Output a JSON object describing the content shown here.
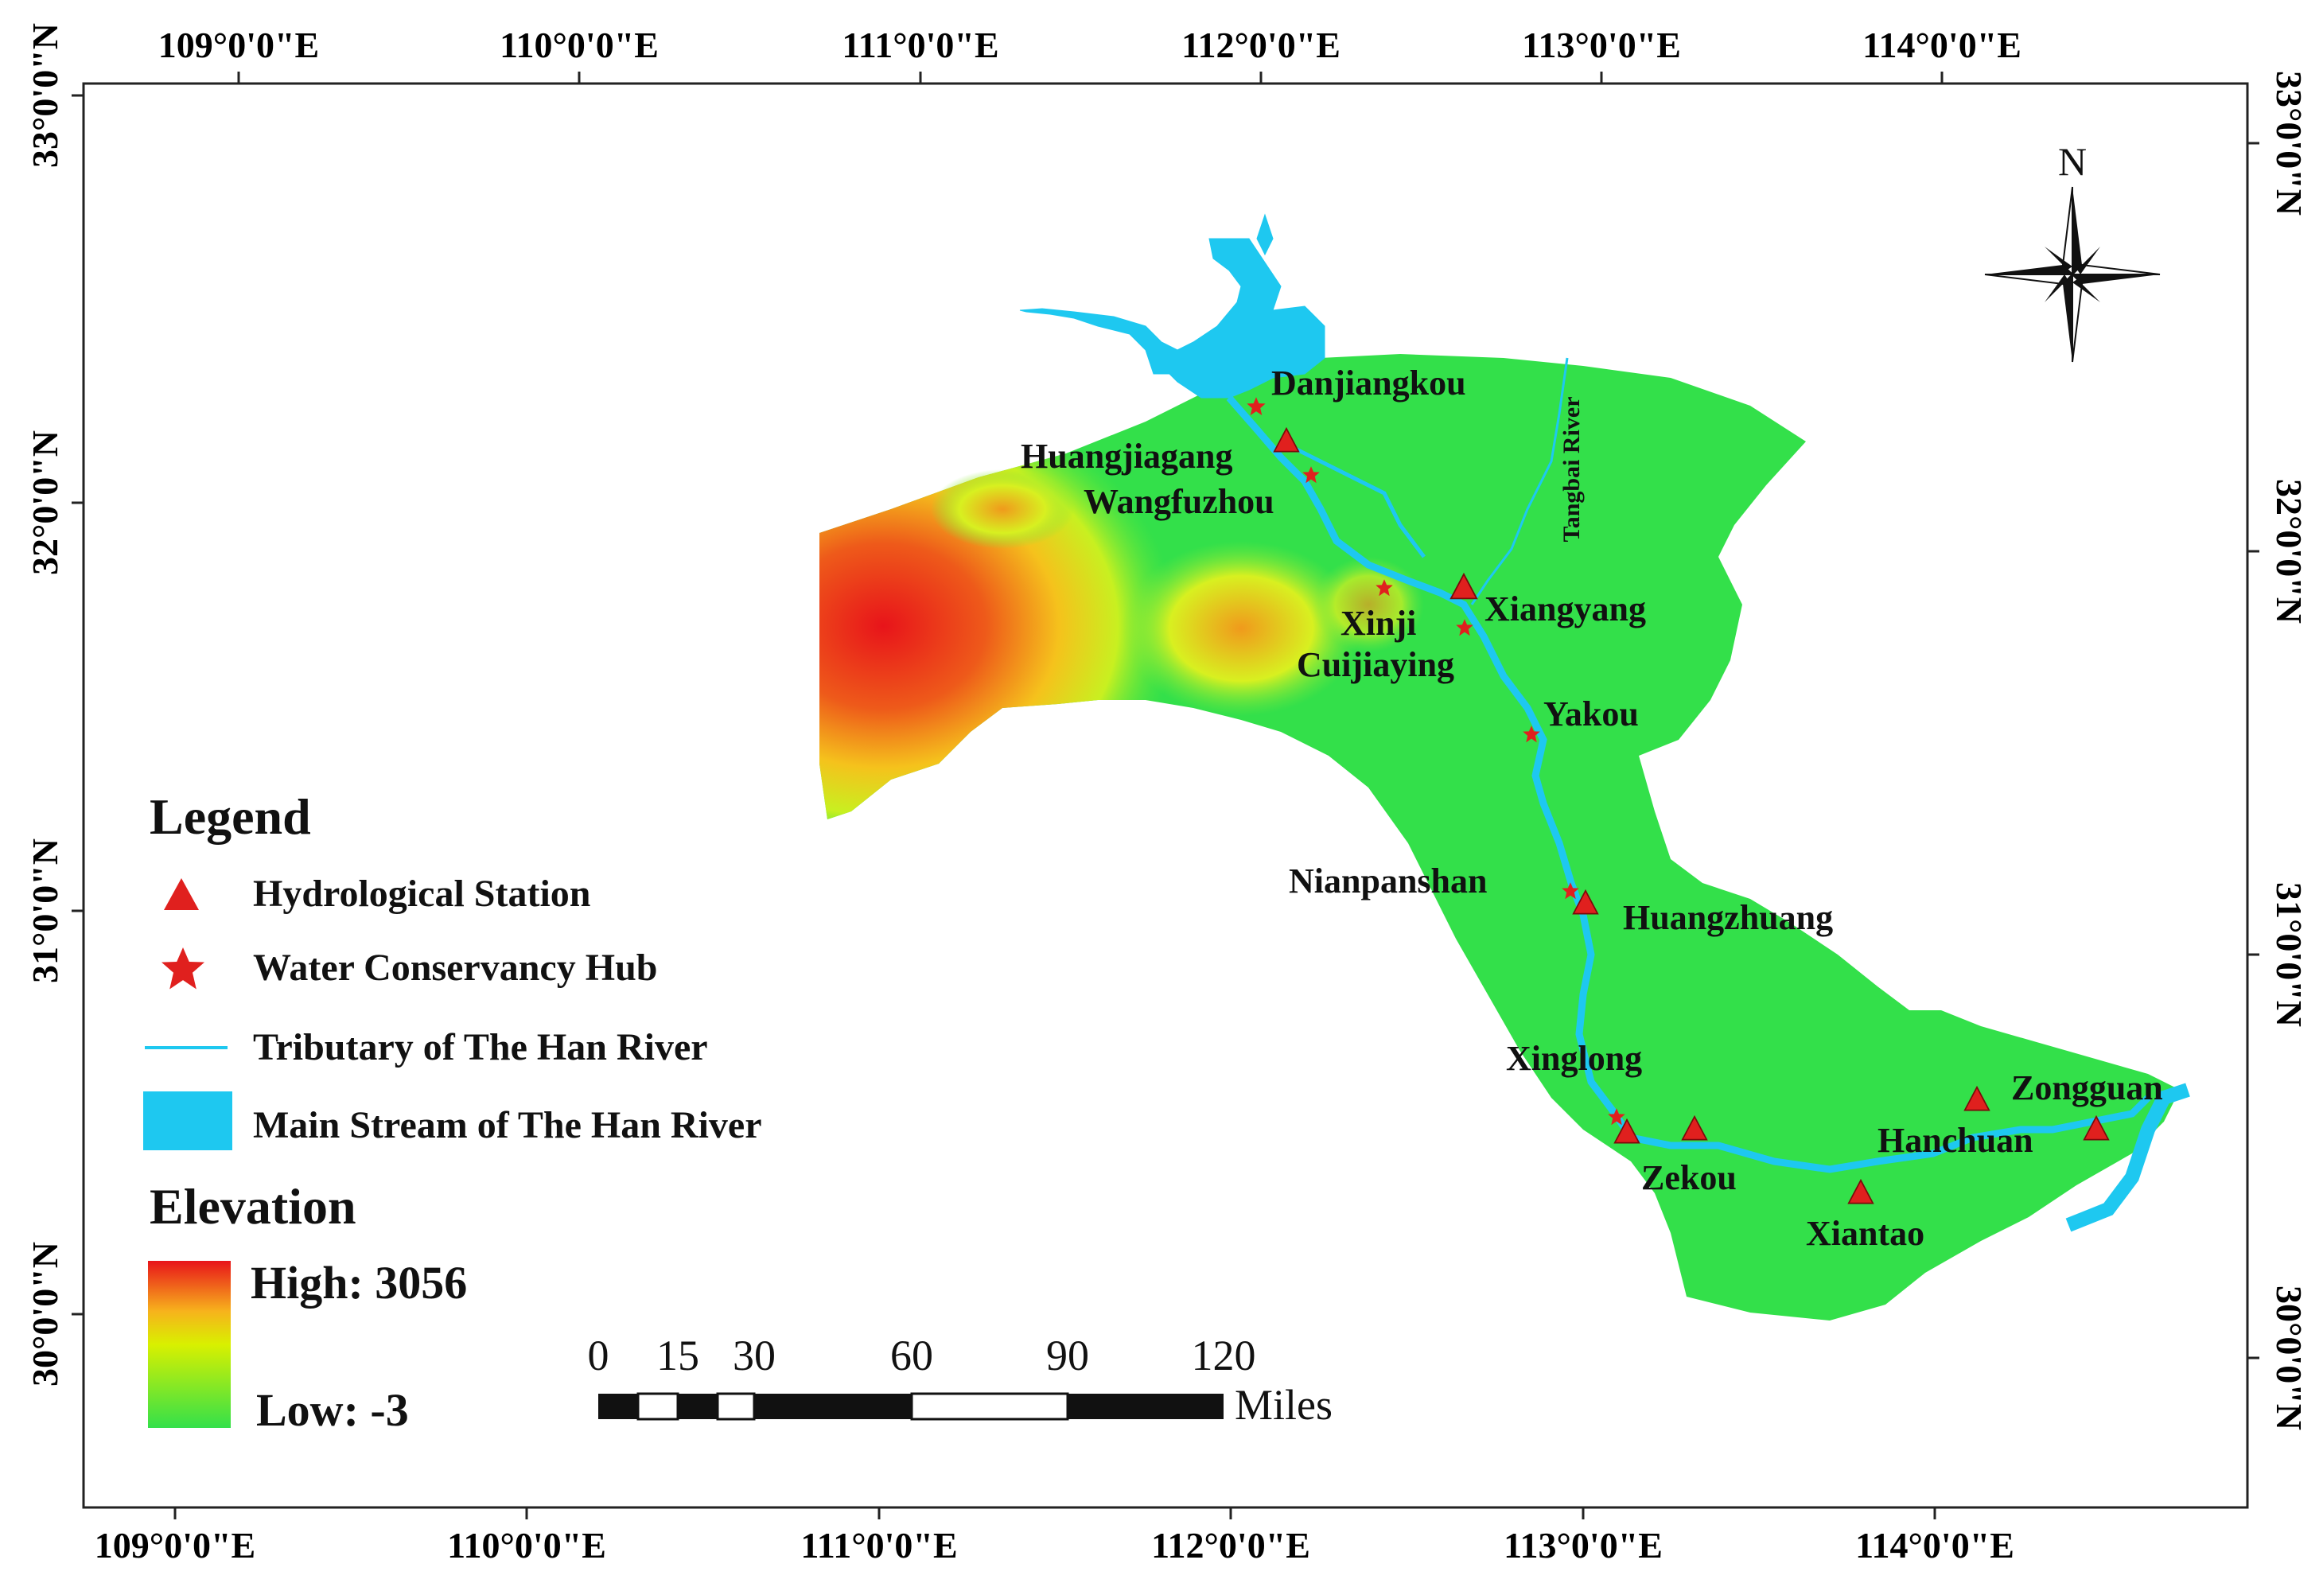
{
  "map": {
    "top_lon_labels": [
      "109°0'0\"E",
      "110°0'0\"E",
      "111°0'0\"E",
      "112°0'0\"E",
      "113°0'0\"E",
      "114°0'0\"E"
    ],
    "bottom_lon_labels": [
      "109°0'0\"E",
      "110°0'0\"E",
      "111°0'0\"E",
      "112°0'0\"E",
      "113°0'0\"E",
      "114°0'0\"E"
    ],
    "left_lat_labels": [
      "33°0'0\"N",
      "32°0'0\"N",
      "31°0'0\"N",
      "30°0'0\"N"
    ],
    "right_lat_labels": [
      "33°0'0\"N",
      "32°0'0\"N",
      "31°0'0\"N",
      "30°0'0\"N"
    ],
    "north_label": "N",
    "river_label": "Tangbai River",
    "places": [
      {
        "name": "Danjiangkou",
        "type": "hub"
      },
      {
        "name": "Huangjiagang",
        "type": "station"
      },
      {
        "name": "Wangfuzhou",
        "type": "hub"
      },
      {
        "name": "Xinji",
        "type": "hub"
      },
      {
        "name": "Xiangyang",
        "type": "station"
      },
      {
        "name": "Cuijiaying",
        "type": "hub"
      },
      {
        "name": "Yakou",
        "type": "hub"
      },
      {
        "name": "Nianpanshan",
        "type": "hub"
      },
      {
        "name": "Huangzhuang",
        "type": "station"
      },
      {
        "name": "Xinglong",
        "type": "hub"
      },
      {
        "name": "Zekou",
        "type": "station"
      },
      {
        "name": "Xiantao",
        "type": "station"
      },
      {
        "name": "Hanchuan",
        "type": "station"
      },
      {
        "name": "Zongguan",
        "type": "station"
      }
    ],
    "legend": {
      "title": "Legend",
      "items": [
        {
          "label": "Hydrological Station",
          "symbol": "triangle-icon"
        },
        {
          "label": "Water Conservancy Hub",
          "symbol": "star-icon"
        },
        {
          "label": "Tributary of The Han River",
          "symbol": "line-icon"
        },
        {
          "label": "Main Stream of The Han River",
          "symbol": "box-icon"
        }
      ],
      "elevation_title": "Elevation",
      "high_label": "High: 3056",
      "low_label": "Low: -3"
    },
    "scale_bar": {
      "ticks": [
        "0",
        "15",
        "30",
        "60",
        "90",
        "120"
      ],
      "unit": "Miles"
    },
    "colors": {
      "water": "#1ec8f0",
      "marker": "#e0201e",
      "low": "#33e04a",
      "high": "#e8141a"
    }
  }
}
